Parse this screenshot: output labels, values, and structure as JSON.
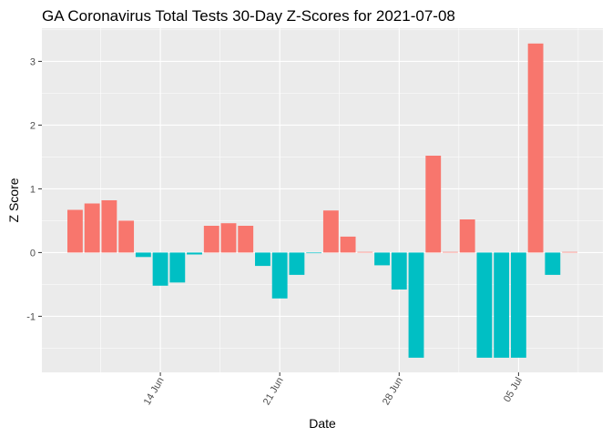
{
  "chart_data": {
    "type": "bar",
    "title": "GA Coronavirus Total Tests 30-Day Z-Scores for 2021-07-08",
    "xlabel": "Date",
    "ylabel": "Z Score",
    "x_ticks": [
      "14 Jun",
      "21 Jun",
      "28 Jun",
      "05 Jul"
    ],
    "y_ticks": [
      -1,
      0,
      1,
      2,
      3
    ],
    "ylim": [
      -1.88,
      3.52
    ],
    "grid": true,
    "legend": "none",
    "colors": {
      "positive": "#F8766D",
      "negative": "#00BFC4",
      "panel": "#EBEBEB",
      "grid": "#FFFFFF"
    },
    "x": [
      "2021-06-09",
      "2021-06-10",
      "2021-06-11",
      "2021-06-12",
      "2021-06-13",
      "2021-06-14",
      "2021-06-15",
      "2021-06-16",
      "2021-06-17",
      "2021-06-18",
      "2021-06-19",
      "2021-06-20",
      "2021-06-21",
      "2021-06-22",
      "2021-06-23",
      "2021-06-24",
      "2021-06-25",
      "2021-06-26",
      "2021-06-27",
      "2021-06-28",
      "2021-06-29",
      "2021-06-30",
      "2021-07-01",
      "2021-07-02",
      "2021-07-03",
      "2021-07-04",
      "2021-07-05",
      "2021-07-06",
      "2021-07-07",
      "2021-07-08"
    ],
    "values": [
      0.67,
      0.77,
      0.82,
      0.5,
      -0.07,
      -0.52,
      -0.47,
      -0.03,
      0.42,
      0.46,
      0.42,
      -0.21,
      -0.72,
      -0.35,
      -0.01,
      0.66,
      0.25,
      0.01,
      -0.2,
      -0.58,
      -1.65,
      1.52,
      0.01,
      0.52,
      -1.65,
      -1.65,
      -1.65,
      3.28,
      -0.35,
      0.01
    ]
  }
}
